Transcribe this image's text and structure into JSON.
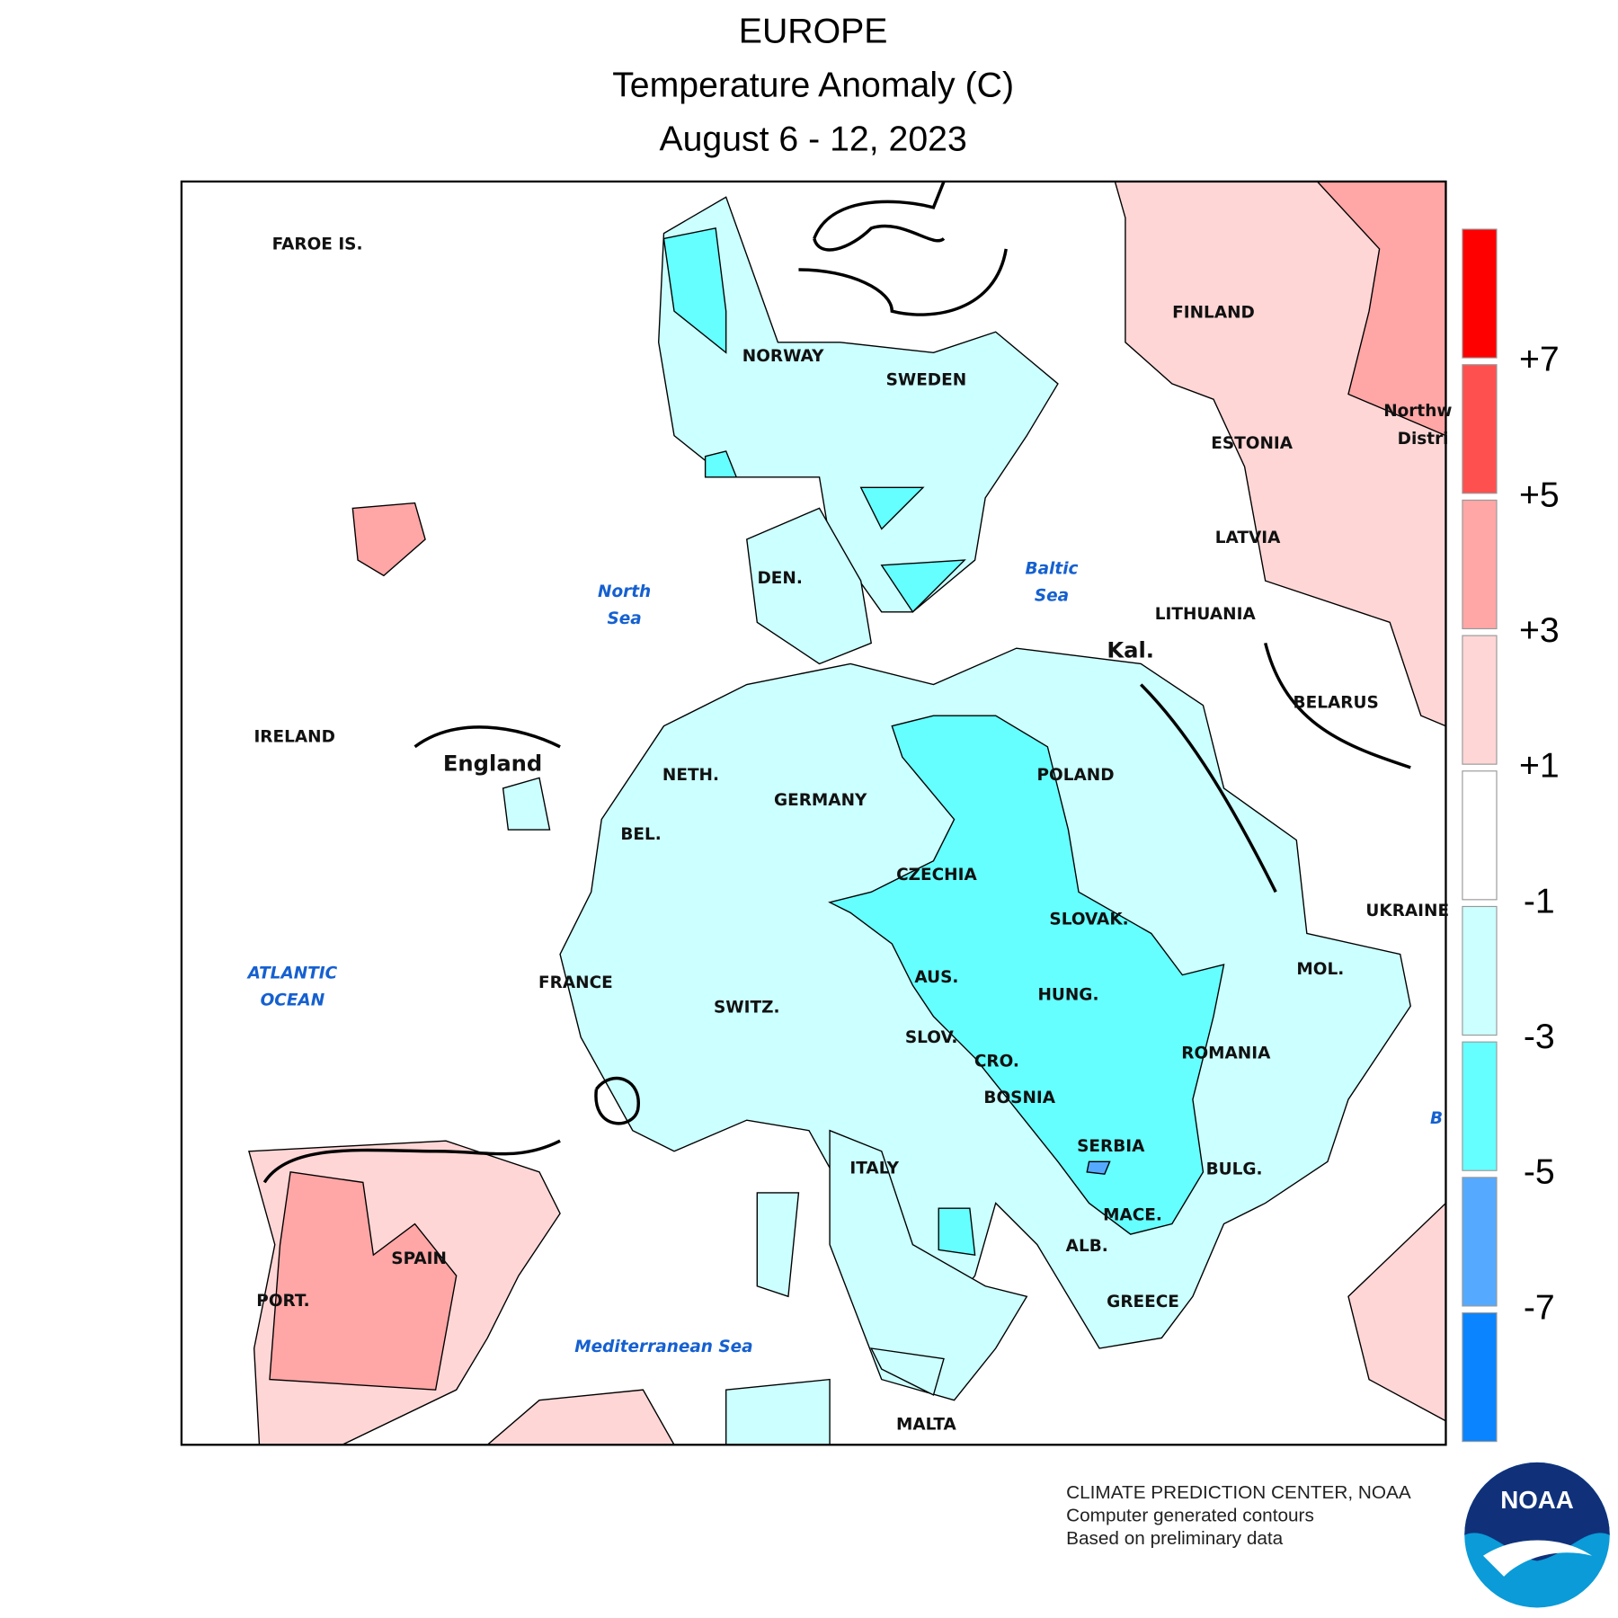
{
  "header": {
    "title": "EUROPE",
    "subtitle": "Temperature Anomaly (C)",
    "date": "August 6 - 12, 2023"
  },
  "places": [
    "FAROE IS.",
    "NORWAY",
    "SWEDEN",
    "FINLAND",
    "Northw",
    "Distri",
    "ESTONIA",
    "LATVIA",
    "LITHUANIA",
    "Kal.",
    "BELARUS",
    "DEN.",
    "IRELAND",
    "England",
    "NETH.",
    "GERMANY",
    "POLAND",
    "BEL.",
    "CZECHIA",
    "SLOVAK.",
    "UKRAINE",
    "FRANCE",
    "AUS.",
    "MOL.",
    "SWITZ.",
    "HUNG.",
    "SLOV.",
    "ROMANIA",
    "CRO.",
    "BOSNIA",
    "SERBIA",
    "ITALY",
    "BULG.",
    "MACE.",
    "ALB.",
    "SPAIN",
    "PORT.",
    "GREECE",
    "MALTA"
  ],
  "seas": [
    [
      "North",
      "Sea"
    ],
    [
      "Baltic",
      "Sea"
    ],
    [
      "ATLANTIC",
      "OCEAN"
    ],
    [
      "Mediterranean Sea"
    ],
    [
      "B"
    ]
  ],
  "legend": {
    "labels": [
      "+7",
      "+5",
      "+3",
      "+1",
      "-1",
      "-3",
      "-5",
      "-7"
    ],
    "colors": [
      "#ff0000",
      "#ff5050",
      "#ffa6a6",
      "#ffd6d6",
      "#ffffff",
      "#ccffff",
      "#66ffff",
      "#55aaff",
      "#0a84ff"
    ]
  },
  "credits": [
    "CLIMATE PREDICTION CENTER, NOAA",
    "Computer generated contours",
    "Based on preliminary data"
  ],
  "logo": "NOAA"
}
